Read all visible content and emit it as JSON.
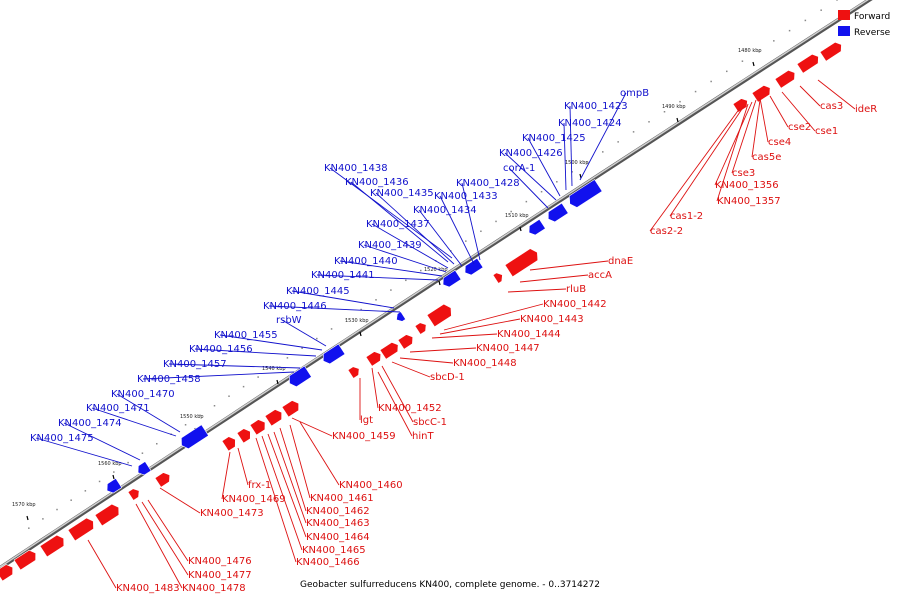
{
  "legend": {
    "forward_label": "Forward",
    "reverse_label": "Reverse",
    "forward_color": "#ee1111",
    "reverse_color": "#1111ee"
  },
  "caption": "Geobacter sulfurreducens KN400, complete genome. - 0..3714272",
  "ticks": [
    "1480 kbp",
    "1490 kbp",
    "1500 kbp",
    "1510 kbp",
    "1520 kbp",
    "1530 kbp",
    "1540 kbp",
    "1550 kbp",
    "1560 kbp",
    "1570 kbp"
  ],
  "forward_labels": [
    "ideR",
    "cas3",
    "cse1",
    "cse2",
    "cse4",
    "cse3",
    "cas5e",
    "KN400_1356",
    "KN400_1357",
    "cas1-2",
    "cas2-2",
    "dnaE",
    "accA",
    "rluB",
    "KN400_1442",
    "KN400_1443",
    "KN400_1444",
    "KN400_1447",
    "KN400_1448",
    "sbcD-1",
    "lgt",
    "KN400_1452",
    "sbcC-1",
    "hinT",
    "KN400_1459",
    "KN400_1460",
    "frx-1",
    "KN400_1461",
    "KN400_1469",
    "KN400_1462",
    "KN400_1473",
    "KN400_1463",
    "KN400_1464",
    "KN400_1465",
    "KN400_1466",
    "KN400_1476",
    "KN400_1477",
    "KN400_1483",
    "KN400_1478"
  ],
  "reverse_labels": [
    "ompB",
    "KN400_1423",
    "KN400_1424",
    "KN400_1425",
    "KN400_1426",
    "corA-1",
    "KN400_1438",
    "KN400_1428",
    "KN400_1436",
    "KN400_1435",
    "KN400_1433",
    "KN400_1434",
    "KN400_1437",
    "KN400_1439",
    "KN400_1440",
    "KN400_1441",
    "KN400_1445",
    "KN400_1446",
    "rsbW",
    "KN400_1455",
    "KN400_1456",
    "KN400_1457",
    "KN400_1458",
    "KN400_1470",
    "KN400_1471",
    "KN400_1474",
    "KN400_1475"
  ]
}
